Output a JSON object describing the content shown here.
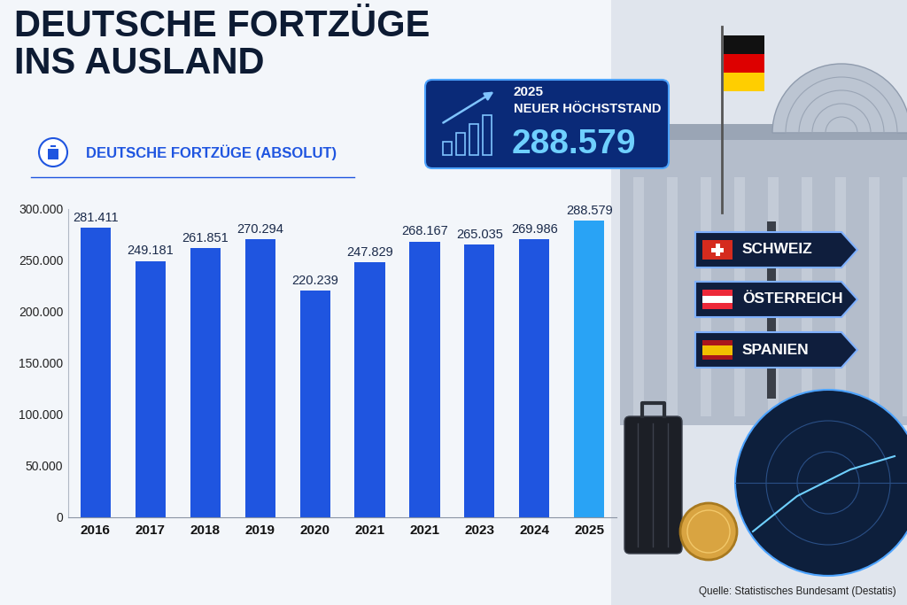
{
  "chart_data": {
    "type": "bar",
    "title": "DEUTSCHE FORTZÜGE\nINS AUSLAND",
    "subtitle": "DEUTSCHE FORTZÜGE (ABSOLUT)",
    "categories": [
      "2016",
      "2017",
      "2018",
      "2019",
      "2020",
      "2021",
      "2021",
      "2023",
      "2024",
      "2025"
    ],
    "values": [
      281411,
      249181,
      261851,
      270294,
      220239,
      247829,
      268167,
      265035,
      269986,
      288579
    ],
    "value_labels": [
      "281.411",
      "249.181",
      "261.851",
      "270.294",
      "220.239",
      "247.829",
      "268.167",
      "265.035",
      "269.986",
      "288.579"
    ],
    "colors": [
      "#1f55e0",
      "#1f55e0",
      "#1f55e0",
      "#1f55e0",
      "#1f55e0",
      "#1f55e0",
      "#1f55e0",
      "#1f55e0",
      "#1f55e0",
      "#29a3f5"
    ],
    "ylim": [
      0,
      300000
    ],
    "yticks": [
      0,
      {
        "value": 50000,
        "label": "50.000"
      },
      {
        "value": 100000,
        "label": "100.000"
      },
      {
        "value": 150000,
        "label": "150.000"
      },
      {
        "value": 200000,
        "label": "200.000"
      },
      {
        "value": 250000,
        "label": "250.000"
      },
      {
        "value": 300000,
        "label": "300.000"
      }
    ],
    "grid": false,
    "data_labels": true,
    "annotations": {
      "highlight": [
        "2025",
        "NEUER HÖCHSTSTAND",
        "288.579"
      ],
      "destinations": [
        "SCHWEIZ",
        "ÖSTERREICH",
        "SPANIEN"
      ],
      "source": "Quelle: Statistisches Bundesamt (Destatis)"
    }
  }
}
